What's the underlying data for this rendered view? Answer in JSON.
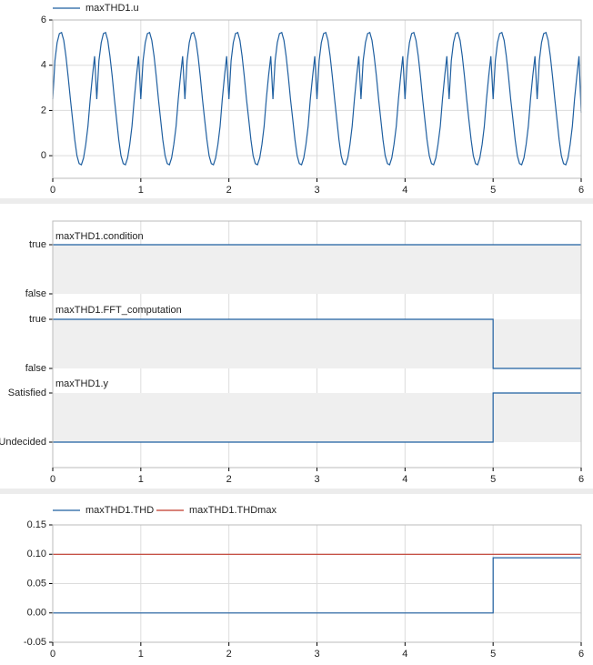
{
  "colors": {
    "series_blue": "#1f5fa0",
    "series_red": "#c0392b",
    "band": "#efefef",
    "grid": "#dcdcdc",
    "axis": "#000000"
  },
  "chart_data": [
    {
      "type": "line",
      "legend": [
        "maxTHD1.u"
      ],
      "xlim": [
        0,
        6
      ],
      "ylim": [
        -1,
        6
      ],
      "x_ticks": [
        "0",
        "1",
        "2",
        "3",
        "4",
        "5",
        "6"
      ],
      "y_ticks": [
        "6",
        "4",
        "2",
        "0"
      ],
      "grid": true,
      "legend_placement": "top-left",
      "series": [
        {
          "name": "maxTHD1.u",
          "x": [
            0.0,
            0.025,
            0.05,
            0.075,
            0.1,
            0.125,
            0.15,
            0.175,
            0.2,
            0.225,
            0.25,
            0.275,
            0.3,
            0.325,
            0.35,
            0.375,
            0.4,
            0.425,
            0.45,
            0.475,
            0.5
          ],
          "y": [
            2.5,
            4.2,
            5.0,
            5.4,
            5.45,
            5.1,
            4.4,
            3.5,
            2.5,
            1.6,
            0.7,
            0.0,
            -0.35,
            -0.4,
            -0.1,
            0.5,
            1.3,
            2.5,
            3.5,
            4.4,
            5.1
          ],
          "note_period": 0.5,
          "x_end": 6.0,
          "y_end": 1.9
        }
      ]
    },
    {
      "type": "line",
      "xlim": [
        0,
        6
      ],
      "x_ticks": [
        "0",
        "1",
        "2",
        "3",
        "4",
        "5",
        "6"
      ],
      "grid": true,
      "series": [
        {
          "name": "maxTHD1.condition",
          "levels": [
            "false",
            "true"
          ],
          "steps": [
            {
              "x": 0,
              "y": "true"
            },
            {
              "x": 6,
              "y": "true"
            }
          ]
        },
        {
          "name": "maxTHD1.FFT_computation",
          "levels": [
            "false",
            "true"
          ],
          "steps": [
            {
              "x": 0,
              "y": "true"
            },
            {
              "x": 5,
              "y": "false"
            },
            {
              "x": 6,
              "y": "false"
            }
          ]
        },
        {
          "name": "maxTHD1.y",
          "levels": [
            "Undecided",
            "Satisfied"
          ],
          "steps": [
            {
              "x": 0,
              "y": "Undecided"
            },
            {
              "x": 5,
              "y": "Satisfied"
            },
            {
              "x": 6,
              "y": "Satisfied"
            }
          ]
        }
      ]
    },
    {
      "type": "line",
      "legend": [
        "maxTHD1.THD",
        "maxTHD1.THDmax"
      ],
      "xlim": [
        0,
        6
      ],
      "ylim": [
        -0.05,
        0.15
      ],
      "x_ticks": [
        "0",
        "1",
        "2",
        "3",
        "4",
        "5",
        "6"
      ],
      "y_ticks": [
        "0.15",
        "0.10",
        "0.05",
        "0.00",
        "-0.05"
      ],
      "grid": true,
      "legend_placement": "top-left",
      "series": [
        {
          "name": "maxTHD1.THD",
          "x": [
            0,
            5,
            5,
            6
          ],
          "y": [
            0.0,
            0.0,
            0.094,
            0.094
          ]
        },
        {
          "name": "maxTHD1.THDmax",
          "x": [
            0,
            6
          ],
          "y": [
            0.1,
            0.1
          ]
        }
      ]
    }
  ]
}
